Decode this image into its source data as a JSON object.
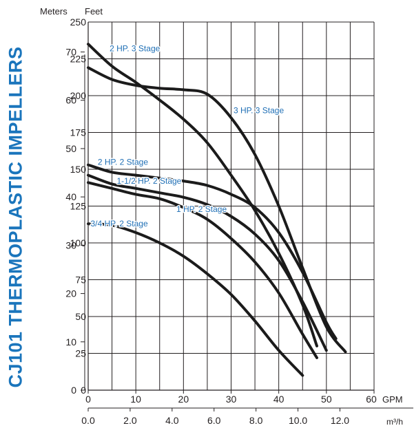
{
  "side_title": "CJ101 THERMOPLASTIC IMPELLERS",
  "chart_data": {
    "type": "line",
    "axis_labels": {
      "meters": "Meters",
      "feet": "Feet",
      "gpm": "GPM",
      "m3h": "m³/h"
    },
    "feet_axis": {
      "range": [
        0,
        250
      ],
      "ticks": [
        0,
        25,
        50,
        75,
        100,
        125,
        150,
        175,
        200,
        225,
        250
      ]
    },
    "meters_axis": {
      "ticks": [
        0,
        10,
        20,
        30,
        40,
        50,
        60,
        70
      ]
    },
    "gpm_axis": {
      "range": [
        0,
        60
      ],
      "ticks": [
        0,
        10,
        20,
        30,
        40,
        50,
        60
      ]
    },
    "m3h_axis": {
      "ticks": [
        "0.0",
        "2.0",
        "4.0",
        "6.0",
        "8.0",
        "10.0",
        "12.0"
      ]
    },
    "grid": true,
    "series": [
      {
        "name": "2 HP. 3 Stage",
        "points": [
          [
            0,
            235
          ],
          [
            5,
            220
          ],
          [
            10,
            209
          ],
          [
            15,
            197
          ],
          [
            20,
            184
          ],
          [
            25,
            168
          ],
          [
            30,
            146
          ],
          [
            35,
            122
          ],
          [
            40,
            93
          ],
          [
            45,
            58
          ],
          [
            48,
            30
          ]
        ],
        "label_at": [
          4.5,
          232
        ]
      },
      {
        "name": "3 HP. 3 Stage",
        "points": [
          [
            0,
            219
          ],
          [
            5,
            211
          ],
          [
            10,
            207
          ],
          [
            15,
            205
          ],
          [
            20,
            204
          ],
          [
            25,
            201
          ],
          [
            30,
            185
          ],
          [
            35,
            160
          ],
          [
            40,
            125
          ],
          [
            45,
            83
          ],
          [
            50,
            43
          ],
          [
            54,
            26
          ]
        ],
        "label_at": [
          30.5,
          190
        ]
      },
      {
        "name": "2 HP. 2 Stage",
        "points": [
          [
            0,
            153
          ],
          [
            5,
            148
          ],
          [
            10,
            146
          ],
          [
            15,
            144
          ],
          [
            20,
            142
          ],
          [
            25,
            139
          ],
          [
            30,
            133
          ],
          [
            35,
            124
          ],
          [
            40,
            107
          ],
          [
            45,
            80
          ],
          [
            50,
            46
          ],
          [
            52,
            35
          ]
        ],
        "label_at": [
          2,
          155
        ]
      },
      {
        "name": "1-1/2 HP. 2 Stage",
        "points": [
          [
            0,
            146
          ],
          [
            5,
            140
          ],
          [
            10,
            137
          ],
          [
            15,
            134
          ],
          [
            20,
            131
          ],
          [
            25,
            126
          ],
          [
            30,
            118
          ],
          [
            35,
            106
          ],
          [
            40,
            88
          ],
          [
            45,
            60
          ],
          [
            50,
            27
          ]
        ],
        "label_at": [
          6,
          142
        ]
      },
      {
        "name": "1 HP. 2 Stage",
        "points": [
          [
            0,
            141
          ],
          [
            5,
            137
          ],
          [
            10,
            133
          ],
          [
            15,
            130
          ],
          [
            20,
            124
          ],
          [
            25,
            116
          ],
          [
            30,
            103
          ],
          [
            35,
            87
          ],
          [
            40,
            66
          ],
          [
            45,
            38
          ],
          [
            48,
            22
          ]
        ],
        "label_at": [
          18.5,
          123
        ]
      },
      {
        "name": "3/4 HP. 2 Stage",
        "points": [
          [
            0,
            113
          ],
          [
            5,
            112
          ],
          [
            10,
            107
          ],
          [
            15,
            100
          ],
          [
            20,
            91
          ],
          [
            25,
            79
          ],
          [
            30,
            65
          ],
          [
            35,
            47
          ],
          [
            40,
            27
          ],
          [
            45,
            10
          ]
        ],
        "label_at": [
          0.5,
          113
        ]
      }
    ]
  }
}
